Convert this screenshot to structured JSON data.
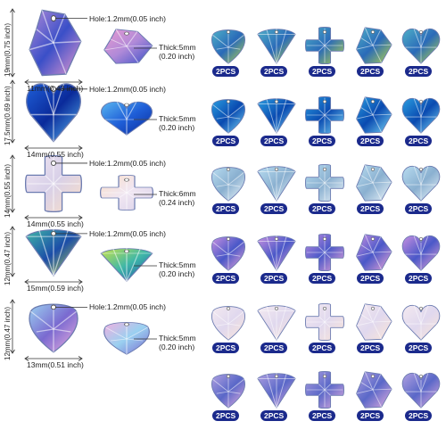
{
  "rows": [
    {
      "shape": "shard",
      "height_label": "19mm(0.75 inch)",
      "width_label": "11mm(0.43 inch)",
      "hole_label": "Hole:1.2mm(0.05 inch)",
      "thick_line1": "Thick:5mm",
      "thick_line2": "(0.20 inch)",
      "colors": [
        "#b08ad8",
        "#3a4fc8",
        "#e89ad0"
      ]
    },
    {
      "shape": "heart",
      "height_label": "17.5mm(0.69 inch)",
      "width_label": "14mm(0.55 inch)",
      "hole_label": "Hole:1.2mm(0.05 inch)",
      "thick_line1": "Thick:5mm",
      "thick_line2": "(0.20 inch)",
      "colors": [
        "#1f5fd8",
        "#0a2a9a",
        "#59b6f0"
      ]
    },
    {
      "shape": "cross",
      "height_label": "14mm(0.55 inch)",
      "width_label": "14mm(0.55 inch)",
      "hole_label": "Hole:1.2mm(0.05 inch)",
      "thick_line1": "Thick:6mm",
      "thick_line2": "(0.24 inch)",
      "colors": [
        "#f0e6f2",
        "#d8d0e8",
        "#fbe0c8"
      ]
    },
    {
      "shape": "fan",
      "height_label": "12mm(0.47 inch)",
      "width_label": "15mm(0.59 inch)",
      "hole_label": "Hole:1.2mm(0.05 inch)",
      "thick_line1": "Thick:5mm",
      "thick_line2": "(0.20 inch)",
      "colors": [
        "#3fb7a8",
        "#1c4da8",
        "#c6e24a"
      ]
    },
    {
      "shape": "drop",
      "height_label": "12mm(0.47 inch)",
      "width_label": "13mm(0.51 inch)",
      "hole_label": "Hole:1.2mm(0.05 inch)",
      "thick_line1": "Thick:5mm",
      "thick_line2": "(0.20 inch)",
      "colors": [
        "#9ad0f0",
        "#7a6ad0",
        "#f0b0e0"
      ]
    }
  ],
  "grid": {
    "badge_text": "2PCS",
    "columns": [
      "drop",
      "fan",
      "cross",
      "shard",
      "heart"
    ],
    "row_colors": [
      [
        "#4fb0c8",
        "#2a6ab8",
        "#b8d84a"
      ],
      [
        "#2a9ee0",
        "#0a4ab0",
        "#7ad8f8"
      ],
      [
        "#b8dcf0",
        "#8ab0d0",
        "#eef6fb"
      ],
      [
        "#c890e0",
        "#4a58c8",
        "#f0a8d8"
      ],
      [
        "#f4eaf0",
        "#e0d8ee",
        "#fbe6d8"
      ],
      [
        "#b0a0e0",
        "#5a68c8",
        "#e8b0e0"
      ]
    ]
  }
}
